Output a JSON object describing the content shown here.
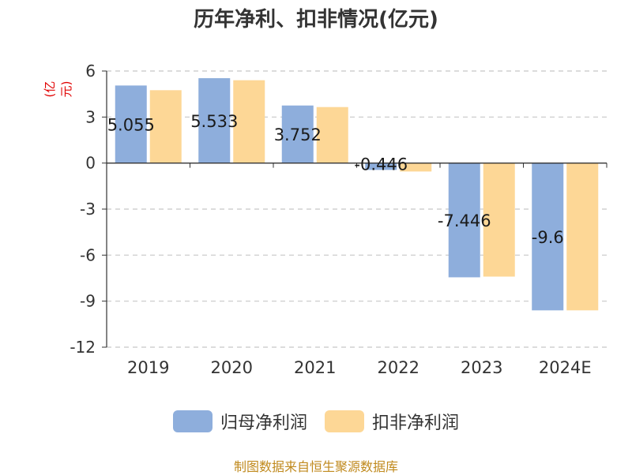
{
  "chart_data": {
    "type": "bar",
    "title": "历年净利、扣非情况(亿元)",
    "ylabel": "(亿元)",
    "categories": [
      "2019",
      "2020",
      "2021",
      "2022",
      "2023",
      "2024E"
    ],
    "series": [
      {
        "name": "归母净利润",
        "color": "#8eaedc",
        "values": [
          5.055,
          5.533,
          3.752,
          -0.446,
          -7.446,
          -9.6
        ],
        "labels": [
          "5.055",
          "5.533",
          "3.752",
          "-0.446",
          "-7.446",
          "-9.6"
        ]
      },
      {
        "name": "扣非净利润",
        "color": "#fdd796",
        "values": [
          4.75,
          5.4,
          3.65,
          -0.55,
          -7.4,
          -9.6
        ]
      }
    ],
    "ylim": [
      -12,
      6
    ],
    "yticks": [
      6,
      3,
      0,
      -3,
      -6,
      -9,
      -12
    ],
    "grid": true,
    "legend_position": "bottom"
  },
  "source": "制图数据来自恒生聚源数据库"
}
